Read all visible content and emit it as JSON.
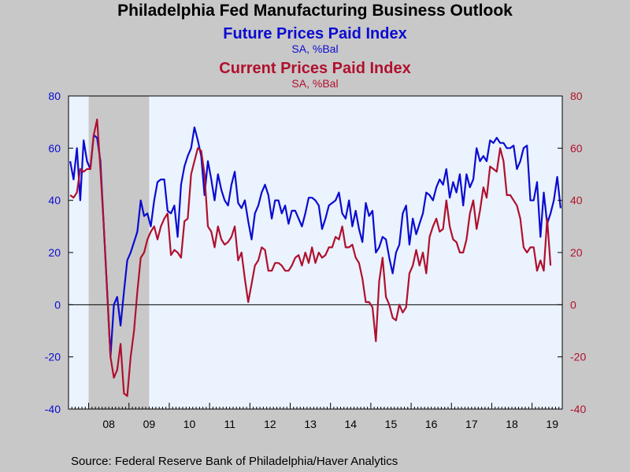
{
  "title": "Philadelphia Fed Manufacturing Business Outlook",
  "series1_title": "Future Prices Paid Index",
  "series1_unit": "SA, %Bal",
  "series2_title": "Current Prices Paid Index",
  "series2_unit": "SA, %Bal",
  "source": "Source:  Federal Reserve Bank of Philadelphia/Haver Analytics",
  "colors": {
    "future": "#0b0bd0",
    "current": "#b0102e",
    "plot_background": "#eaf3fe",
    "recession_shading": "#c8c8c8",
    "page_background": "#c8c8c8"
  },
  "chart_data": {
    "type": "line",
    "x_start": "2007-07",
    "x_end": "2019-09",
    "frequency": "monthly",
    "ylim": [
      -40,
      80
    ],
    "left_axis_ticks": [
      "80",
      "60",
      "40",
      "20",
      "0",
      "-20",
      "-40"
    ],
    "right_axis_ticks": [
      "80",
      "60",
      "40",
      "20",
      "0",
      "-20",
      "-40"
    ],
    "year_labels": [
      "08",
      "09",
      "10",
      "11",
      "12",
      "13",
      "14",
      "15",
      "16",
      "17",
      "18",
      "19"
    ],
    "recession_shading": {
      "start": "2008-01",
      "end": "2009-06"
    },
    "zero_line": true,
    "grid": false,
    "series": [
      {
        "name": "Future Prices Paid Index",
        "values": [
          55,
          48,
          60,
          40,
          63,
          55,
          52,
          65,
          64,
          55,
          30,
          5,
          -20,
          0,
          3,
          -8,
          5,
          17,
          20,
          24,
          28,
          40,
          34,
          35,
          30,
          40,
          47,
          48,
          48,
          36,
          35,
          38,
          26,
          46,
          53,
          57,
          60,
          68,
          63,
          57,
          42,
          55,
          48,
          40,
          50,
          44,
          40,
          38,
          46,
          51,
          39,
          37,
          40,
          32,
          25,
          35,
          38,
          43,
          46,
          42,
          33,
          40,
          40,
          35,
          38,
          31,
          36,
          36,
          33,
          30,
          35,
          41,
          41,
          40,
          38,
          29,
          33,
          38,
          39,
          40,
          43,
          35,
          33,
          40,
          30,
          36,
          29,
          24,
          39,
          34,
          36,
          20,
          22,
          26,
          25,
          18,
          12,
          20,
          23,
          35,
          38,
          23,
          33,
          27,
          31,
          35,
          43,
          42,
          40,
          45,
          48,
          46,
          52,
          41,
          47,
          43,
          50,
          38,
          50,
          45,
          48,
          60,
          55,
          57,
          55,
          63,
          62,
          64,
          62,
          62,
          60,
          60,
          61,
          52,
          55,
          60,
          61,
          40,
          40,
          47,
          26,
          43,
          31,
          35,
          40,
          49,
          37
        ]
      },
      {
        "name": "Current Prices Paid Index",
        "values": [
          42,
          41,
          43,
          52,
          51,
          52,
          52,
          65,
          71,
          52,
          30,
          5,
          -20,
          -28,
          -25,
          -15,
          -34,
          -35,
          -20,
          -10,
          5,
          18,
          20,
          25,
          28,
          30,
          25,
          30,
          33,
          35,
          19,
          21,
          20,
          18,
          32,
          33,
          50,
          55,
          60,
          59,
          50,
          30,
          28,
          22,
          30,
          25,
          23,
          24,
          26,
          30,
          17,
          20,
          10,
          1,
          8,
          15,
          17,
          22,
          21,
          13,
          13,
          16,
          16,
          15,
          13,
          13,
          15,
          18,
          19,
          15,
          20,
          16,
          22,
          16,
          20,
          18,
          19,
          22,
          22,
          26,
          25,
          30,
          22,
          22,
          23,
          18,
          16,
          10,
          1,
          1,
          -1,
          -14,
          9,
          18,
          3,
          0,
          -5,
          -6,
          0,
          -3,
          -1,
          12,
          15,
          21,
          15,
          20,
          12,
          26,
          30,
          33,
          28,
          29,
          40,
          30,
          25,
          24,
          20,
          20,
          25,
          35,
          40,
          29,
          36,
          45,
          41,
          53,
          52,
          51,
          60,
          55,
          42,
          42,
          40,
          38,
          33,
          22,
          20,
          22,
          22,
          13,
          17,
          13,
          33,
          15
        ]
      }
    ]
  }
}
